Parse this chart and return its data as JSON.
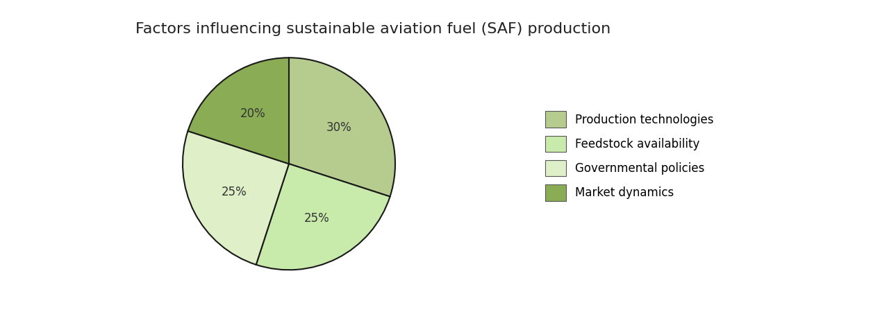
{
  "title": "Factors influencing sustainable aviation fuel (SAF) production",
  "slices": [
    {
      "label": "Production technologies",
      "value": 30,
      "color": "#b5cc8e",
      "pct_label": "30%"
    },
    {
      "label": "Feedstock availability",
      "value": 25,
      "color": "#c8eaaa",
      "pct_label": "25%"
    },
    {
      "label": "Governmental policies",
      "value": 25,
      "color": "#dff0c8",
      "pct_label": "25%"
    },
    {
      "label": "Market dynamics",
      "value": 20,
      "color": "#8aac54",
      "pct_label": "20%"
    }
  ],
  "start_angle": 90,
  "edge_color": "#1a1a1a",
  "edge_width": 1.5,
  "title_fontsize": 16,
  "label_fontsize": 12,
  "legend_fontsize": 12,
  "background_color": "#ffffff"
}
